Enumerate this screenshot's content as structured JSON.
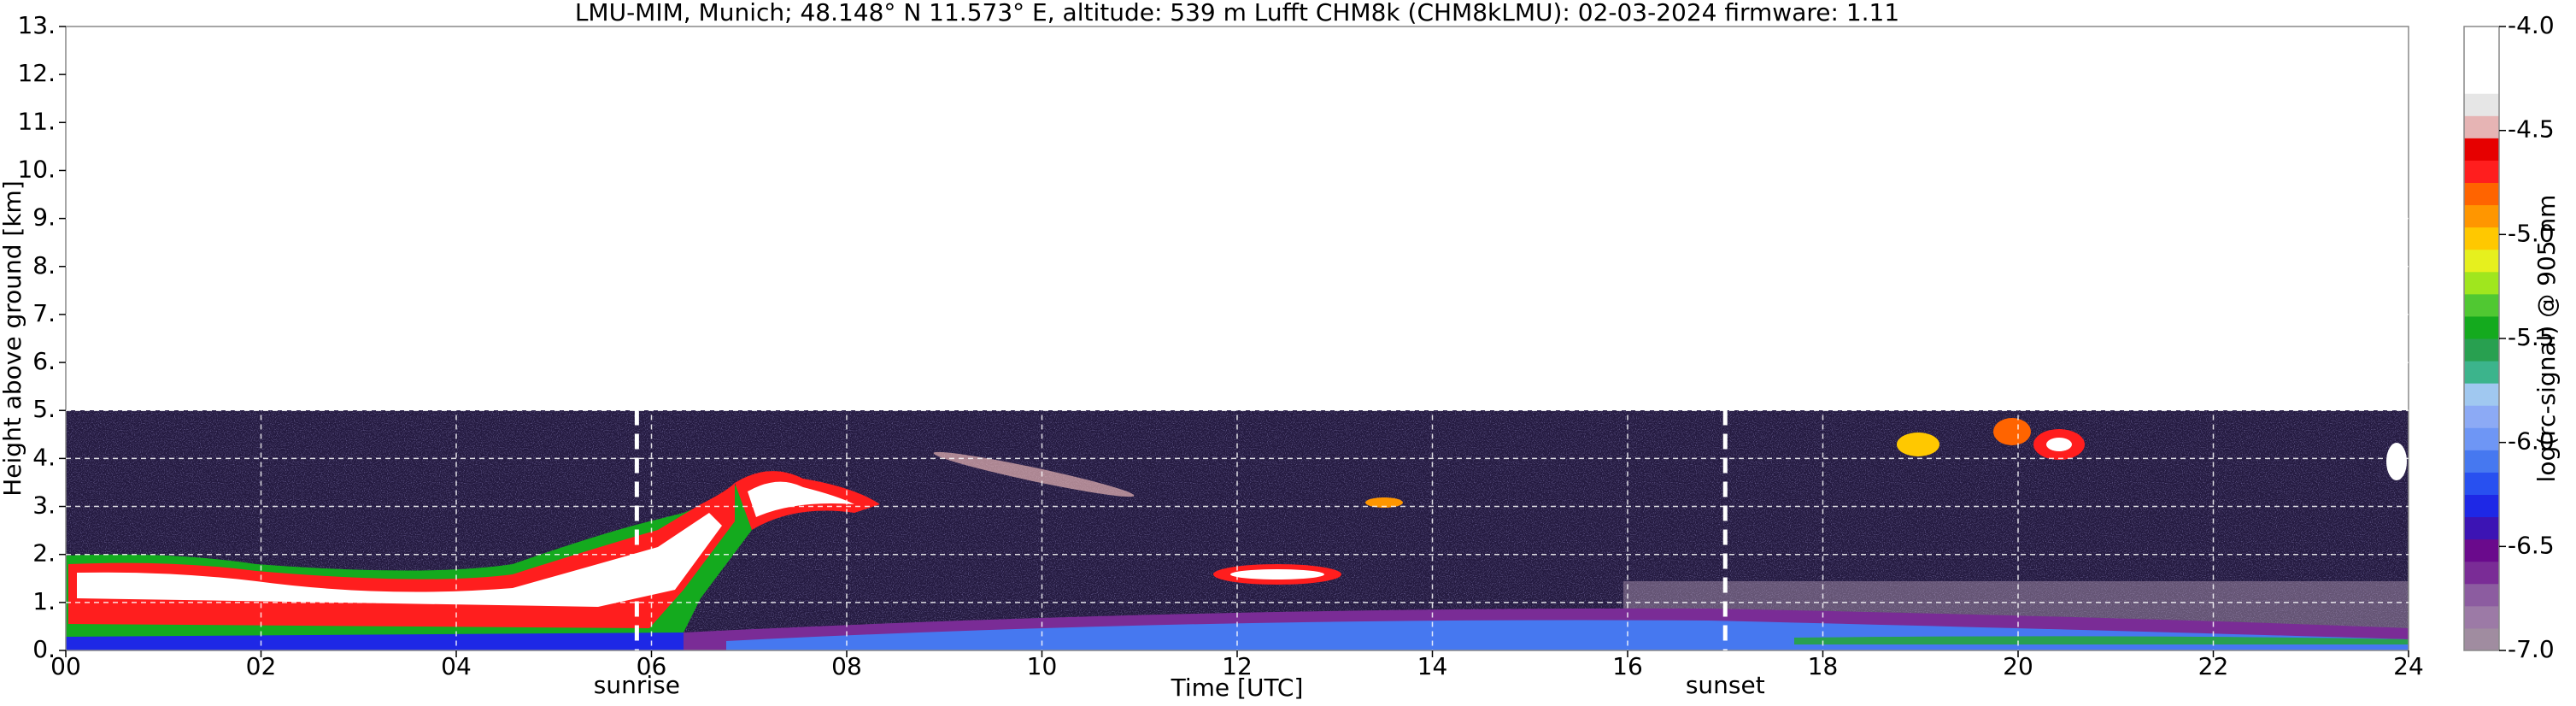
{
  "chart_data": {
    "type": "heatmap",
    "title": "LMU-MIM, Munich; 48.148° N 11.573° E, altitude: 539 m    Lufft CHM8k (CHM8kLMU): 02-03-2024    firmware: 1.11",
    "xlabel": "Time [UTC]",
    "ylabel": "Height above ground [km]",
    "xlim": [
      0,
      24
    ],
    "xticks": [
      {
        "value": 0,
        "label": "00"
      },
      {
        "value": 2,
        "label": "02"
      },
      {
        "value": 4,
        "label": "04"
      },
      {
        "value": 6,
        "label": "06"
      },
      {
        "value": 8,
        "label": "08"
      },
      10,
      12,
      14,
      16,
      18,
      20,
      22,
      24
    ],
    "ylim": [
      0,
      13
    ],
    "yticks": [
      {
        "value": 0,
        "label": "0."
      },
      {
        "value": 1,
        "label": "1."
      },
      {
        "value": 2,
        "label": "2."
      },
      {
        "value": 3,
        "label": "3."
      },
      {
        "value": 4,
        "label": "4."
      },
      {
        "value": 5,
        "label": "5."
      },
      {
        "value": 6,
        "label": "6."
      },
      {
        "value": 7,
        "label": "7."
      },
      {
        "value": 8,
        "label": "8."
      },
      {
        "value": 9,
        "label": "9."
      },
      {
        "value": 10,
        "label": "10."
      },
      {
        "value": 11,
        "label": "11."
      },
      {
        "value": 12,
        "label": "12."
      },
      {
        "value": 13,
        "label": "13."
      }
    ],
    "grid": true,
    "annotations": [
      {
        "text": "sunrise",
        "x": 5.85
      },
      {
        "text": "sunset",
        "x": 17.0
      }
    ],
    "colorbar": {
      "label": "log(rc-signal) @ 905 nm",
      "lim": [
        -7.0,
        -4.0
      ],
      "ticks": [
        {
          "value": -4.0,
          "label": "-4.0"
        },
        {
          "value": -4.5,
          "label": "-4.5"
        },
        {
          "value": -5.0,
          "label": "-5.0"
        },
        {
          "value": -5.5,
          "label": "-5.5"
        },
        {
          "value": -6.0,
          "label": "-6.0"
        },
        {
          "value": -6.5,
          "label": "-6.5"
        },
        {
          "value": -7.0,
          "label": "-7.0"
        }
      ],
      "colors": [
        "#a08ca0",
        "#9c7aa6",
        "#8c5ca0",
        "#7a2c96",
        "#6a0a8c",
        "#3c14b4",
        "#1e28e6",
        "#2850f0",
        "#4678f0",
        "#6e96f5",
        "#8caaf5",
        "#a0c8f0",
        "#3cb48c",
        "#28a050",
        "#14aa1e",
        "#50c832",
        "#a0e61e",
        "#e6f01e",
        "#ffc800",
        "#ff9600",
        "#ff6400",
        "#ff1e1e",
        "#e60000",
        "#e6b4b4",
        "#e6e6e6",
        "#ffffff",
        "#ffffff",
        "#ffffff"
      ]
    }
  }
}
